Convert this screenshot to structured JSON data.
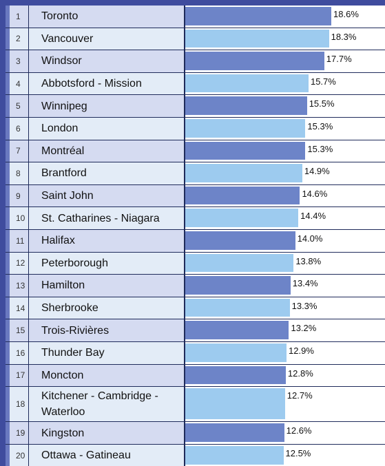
{
  "chart_data": {
    "type": "bar",
    "ranks": [
      1,
      2,
      3,
      4,
      5,
      6,
      7,
      8,
      9,
      10,
      11,
      12,
      13,
      14,
      15,
      16,
      17,
      18,
      19,
      20
    ],
    "categories": [
      "Toronto",
      "Vancouver",
      "Windsor",
      "Abbotsford - Mission",
      "Winnipeg",
      "London",
      "Montréal",
      "Brantford",
      "Saint John",
      "St. Catharines - Niagara",
      "Halifax",
      "Peterborough",
      "Hamilton",
      "Sherbrooke",
      "Trois-Rivières",
      "Thunder Bay",
      "Moncton",
      "Kitchener - Cambridge - Waterloo",
      "Kingston",
      "Ottawa - Gatineau"
    ],
    "values": [
      18.6,
      18.3,
      17.7,
      15.7,
      15.5,
      15.3,
      15.3,
      14.9,
      14.6,
      14.4,
      14.0,
      13.8,
      13.4,
      13.3,
      13.2,
      12.9,
      12.8,
      12.7,
      12.6,
      12.5
    ],
    "value_labels": [
      "18.6%",
      "18.3%",
      "17.7%",
      "15.7%",
      "15.5%",
      "15.3%",
      "15.3%",
      "14.9%",
      "14.6%",
      "14.4%",
      "14.0%",
      "13.8%",
      "13.4%",
      "13.3%",
      "13.2%",
      "12.9%",
      "12.8%",
      "12.7%",
      "12.6%",
      "12.5%"
    ],
    "bar_colors": [
      "#6d84c8",
      "#9dcbef"
    ]
  }
}
